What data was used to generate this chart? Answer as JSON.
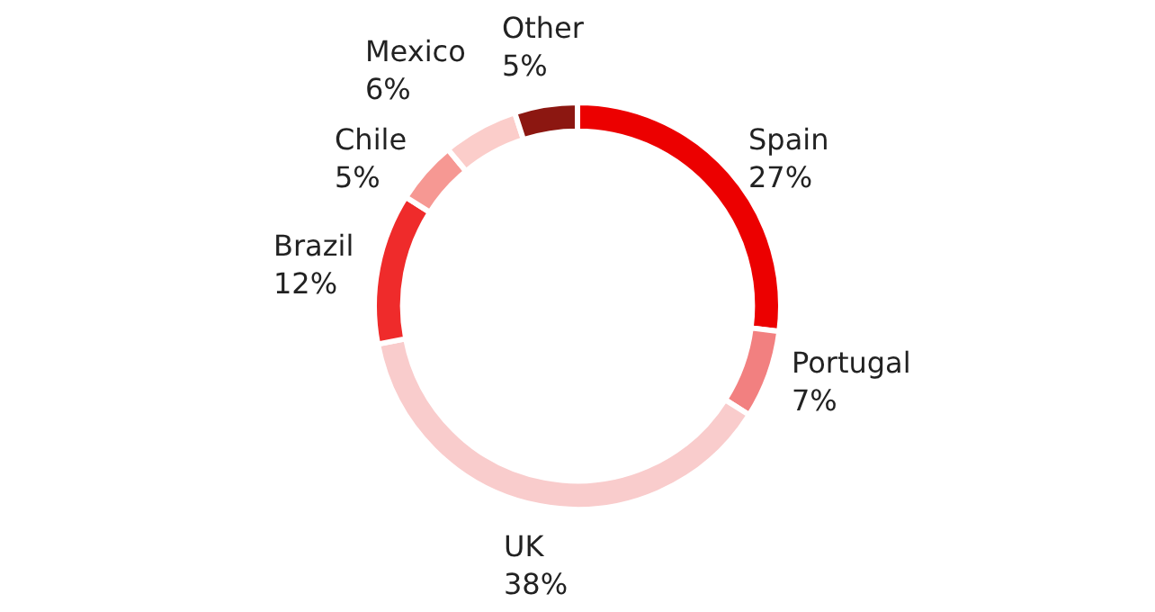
{
  "chart_data": {
    "type": "donut",
    "categories": [
      "Spain",
      "Portugal",
      "UK",
      "Brazil",
      "Chile",
      "Mexico",
      "Other"
    ],
    "values": [
      27,
      7,
      38,
      12,
      5,
      6,
      5
    ],
    "value_labels": [
      "27%",
      "7%",
      "38%",
      "12%",
      "5%",
      "6%",
      "5%"
    ],
    "colors": [
      "#ec0000",
      "#f28080",
      "#f9cccc",
      "#ef2b2b",
      "#f69893",
      "#fbcdca",
      "#8c1711"
    ],
    "legend": false
  }
}
